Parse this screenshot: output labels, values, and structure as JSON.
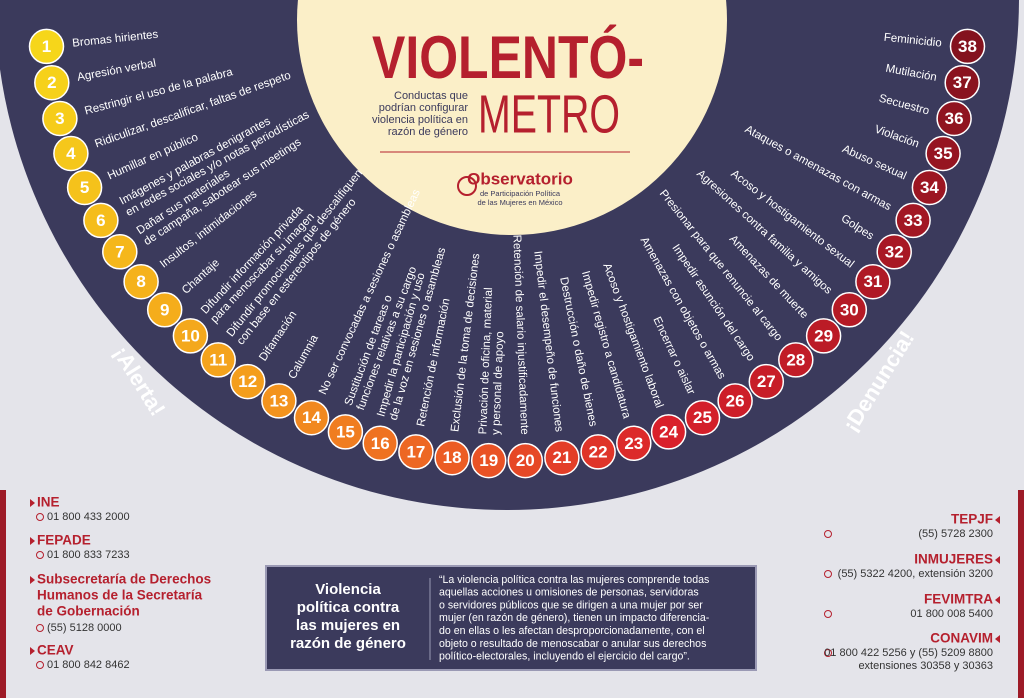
{
  "header": {
    "title_line1": "VIOLENTÓ-",
    "title_line2": "METRO",
    "subtitle": [
      "Conductas que",
      "podrían configurar",
      "violencia política en",
      "razón de género"
    ]
  },
  "logo": {
    "name": "Observatorio",
    "subtitle": [
      "de Participación Política",
      "de las Mujeres en México"
    ]
  },
  "scale": {
    "alert": "¡Alerta!",
    "denuncia": "¡Denuncia!",
    "items": [
      {
        "number": 1,
        "label": [
          "Bromas hirientes"
        ]
      },
      {
        "number": 2,
        "label": [
          "Agresión verbal"
        ]
      },
      {
        "number": 3,
        "label": [
          "Restringir el uso de la palabra"
        ]
      },
      {
        "number": 4,
        "label": [
          "Ridiculizar, descalificar, faltas de respeto"
        ]
      },
      {
        "number": 5,
        "label": [
          "Humillar en público"
        ]
      },
      {
        "number": 6,
        "label": [
          "Imágenes y palabras denigrantes",
          "en redes sociales y/o notas periodísticas"
        ]
      },
      {
        "number": 7,
        "label": [
          "Dañar sus materiales",
          "de campaña, sabotear sus meetings"
        ]
      },
      {
        "number": 8,
        "label": [
          "Insultos, intimidaciones"
        ]
      },
      {
        "number": 9,
        "label": [
          "Chantaje"
        ]
      },
      {
        "number": 10,
        "label": [
          "Difundir información privada",
          "para menoscabar su imagen"
        ]
      },
      {
        "number": 11,
        "label": [
          "Difundir promocionales que descalifiquen",
          "con base en estereotipos de género"
        ]
      },
      {
        "number": 12,
        "label": [
          "Difamación"
        ]
      },
      {
        "number": 13,
        "label": [
          "Calumnia"
        ]
      },
      {
        "number": 14,
        "label": [
          "No ser convocadas a sesiones o asambleas"
        ]
      },
      {
        "number": 15,
        "label": [
          "Sustitución de tareas o",
          "funciones relativas a su cargo"
        ]
      },
      {
        "number": 16,
        "label": [
          "Impedir la participación y uso",
          "de la voz en sesiones o asambleas"
        ]
      },
      {
        "number": 17,
        "label": [
          "Retención de información"
        ]
      },
      {
        "number": 18,
        "label": [
          "Exclusión de la toma de decisiones"
        ]
      },
      {
        "number": 19,
        "label": [
          "Privación de oficina, material",
          "y personal de apoyo"
        ]
      },
      {
        "number": 20,
        "label": [
          "Retención de salario injustificadamente"
        ]
      },
      {
        "number": 21,
        "label": [
          "Impedir el desempeño de funciones"
        ]
      },
      {
        "number": 22,
        "label": [
          "Destrucción o daño de bienes"
        ]
      },
      {
        "number": 23,
        "label": [
          "Impedir registro a candidatura"
        ]
      },
      {
        "number": 24,
        "label": [
          "Acoso y hostigamiento laboral"
        ]
      },
      {
        "number": 25,
        "label": [
          "Encerrar o aislar"
        ]
      },
      {
        "number": 26,
        "label": [
          "Amenazas con objetos o armas"
        ]
      },
      {
        "number": 27,
        "label": [
          "Impedir asunción del cargo"
        ]
      },
      {
        "number": 28,
        "label": [
          "Presionar para que renuncie al cargo"
        ]
      },
      {
        "number": 29,
        "label": [
          "Amenazas de muerte"
        ]
      },
      {
        "number": 30,
        "label": [
          "Agresiones contra familia y amigos"
        ]
      },
      {
        "number": 31,
        "label": [
          "Acoso y hostigamiento sexual"
        ]
      },
      {
        "number": 32,
        "label": [
          "Golpes"
        ]
      },
      {
        "number": 33,
        "label": [
          "Ataques o amenazas con armas"
        ]
      },
      {
        "number": 34,
        "label": [
          "Abuso sexual"
        ]
      },
      {
        "number": 35,
        "label": [
          "Violación"
        ]
      },
      {
        "number": 36,
        "label": [
          "Secuestro"
        ]
      },
      {
        "number": 37,
        "label": [
          "Mutilación"
        ]
      },
      {
        "number": 38,
        "label": [
          "Feminicidio"
        ]
      }
    ]
  },
  "contacts": {
    "left": [
      {
        "name": [
          "INE"
        ],
        "phone": [
          "01 800 433 2000"
        ]
      },
      {
        "name": [
          "FEPADE"
        ],
        "phone": [
          "01 800 833 7233"
        ]
      },
      {
        "name": [
          "Subsecretaría de Derechos",
          "Humanos de la Secretaría",
          "de Gobernación"
        ],
        "phone": [
          "(55) 5128 0000"
        ]
      },
      {
        "name": [
          "CEAV"
        ],
        "phone": [
          "01 800 842 8462"
        ]
      }
    ],
    "right": [
      {
        "name": [
          "TEPJF"
        ],
        "phone": [
          "(55) 5728 2300"
        ]
      },
      {
        "name": [
          "INMUJERES"
        ],
        "phone": [
          "(55) 5322 4200, extensión 3200"
        ]
      },
      {
        "name": [
          "FEVIMTRA"
        ],
        "phone": [
          "01 800 008 5400"
        ]
      },
      {
        "name": [
          "CONAVIM"
        ],
        "phone": [
          "01 800 422 5256 y (55) 5209 8800",
          "extensiones 30358 y 30363"
        ]
      }
    ]
  },
  "definition": {
    "title": [
      "Violencia",
      "política contra",
      "las mujeres en",
      "razón de género"
    ],
    "text": [
      "“La violencia política contra las mujeres comprende todas",
      "aquellas acciones u omisiones de personas, servidoras",
      "o servidores públicos que se dirigen a una mujer por ser",
      "mujer (en razón de género), tienen un impacto diferencia-",
      "do en ellas o les afectan desproporcionadamente, con el",
      "objeto o resultado de menoscabar o anular sus derechos",
      "político-electorales, incluyendo el ejercicio del cargo”."
    ]
  }
}
